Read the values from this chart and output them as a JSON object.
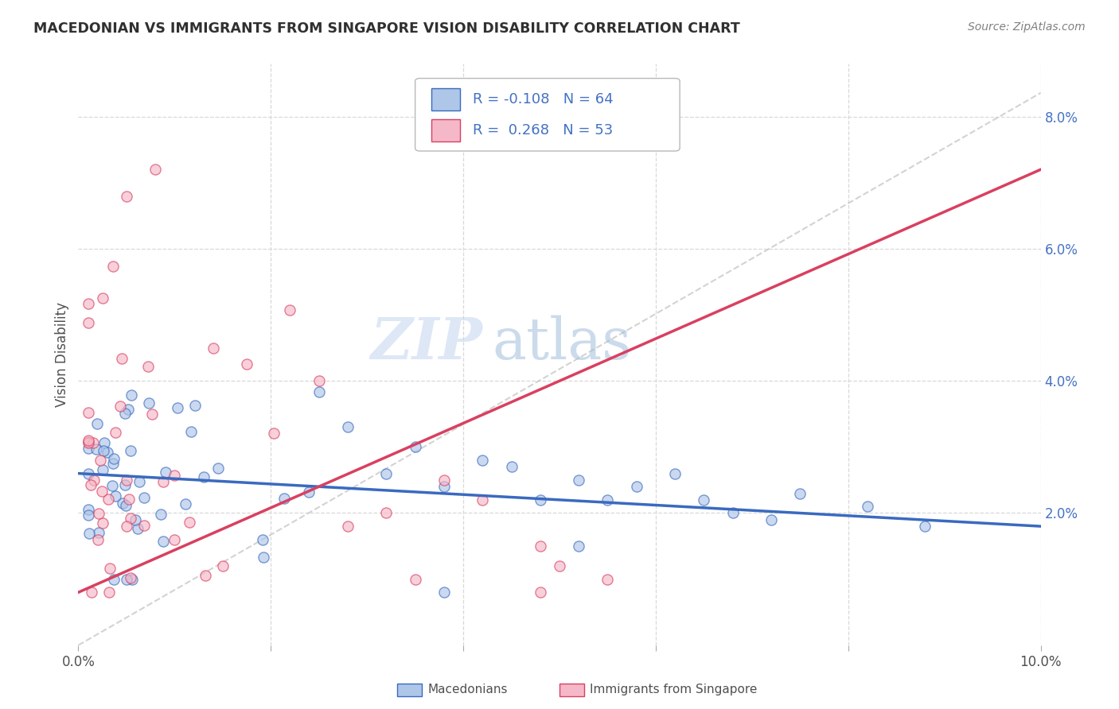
{
  "title": "MACEDONIAN VS IMMIGRANTS FROM SINGAPORE VISION DISABILITY CORRELATION CHART",
  "source": "Source: ZipAtlas.com",
  "ylabel": "Vision Disability",
  "xmin": 0.0,
  "xmax": 0.1,
  "ymin": 0.0,
  "ymax": 0.088,
  "yticks_right": [
    0.02,
    0.04,
    0.06,
    0.08
  ],
  "ytick_labels_right": [
    "2.0%",
    "4.0%",
    "6.0%",
    "8.0%"
  ],
  "xticks": [
    0.0,
    0.02,
    0.04,
    0.06,
    0.08,
    0.1
  ],
  "xtick_labels": [
    "0.0%",
    "",
    "",
    "",
    "",
    "10.0%"
  ],
  "legend_label1": "Macedonians",
  "legend_label2": "Immigrants from Singapore",
  "legend_R1": "-0.108",
  "legend_N1": "64",
  "legend_R2": "0.268",
  "legend_N2": "53",
  "color_macedonian": "#aec6e8",
  "color_singapore": "#f5b8c8",
  "color_line_macedonian": "#3a6abf",
  "color_line_singapore": "#d94060",
  "color_diag_line": "#c8c8c8",
  "color_grid": "#d8d8d8",
  "color_title": "#303030",
  "color_source": "#808080",
  "color_axis_blue": "#4472c4",
  "watermark_zip": "ZIP",
  "watermark_atlas": "atlas"
}
